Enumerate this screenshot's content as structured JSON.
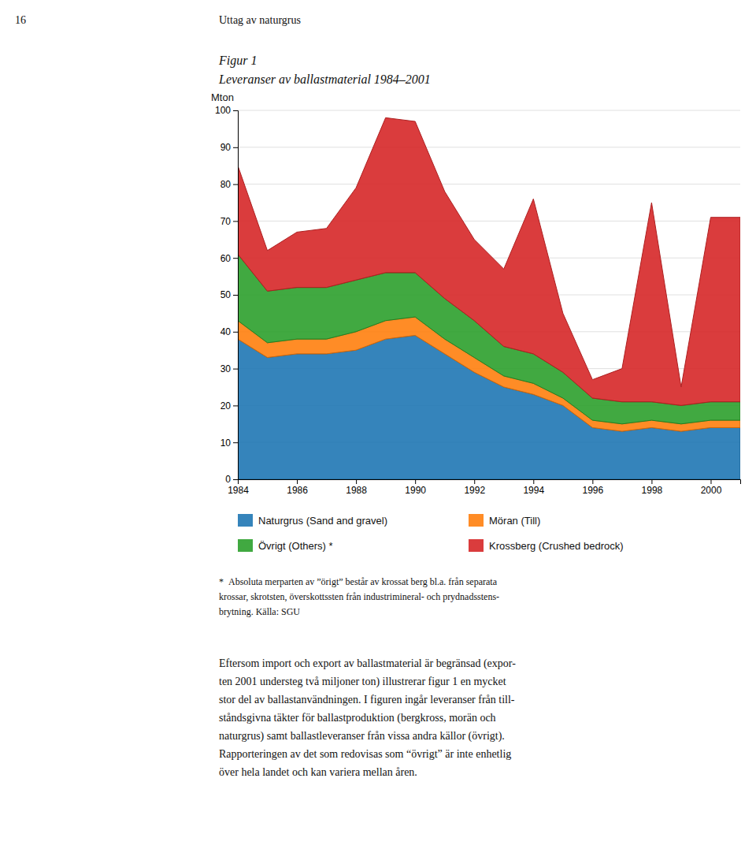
{
  "header": [
    "16",
    "Uttag av naturgrus"
  ],
  "chart_data": {
    "type": "area",
    "stacked": true,
    "title": "Figur 1",
    "subtitle": "Leveranser av ballastmaterial 1984–2001",
    "ylabel": "Mton",
    "x": [
      1984,
      1985,
      1986,
      1987,
      1988,
      1989,
      1990,
      1991,
      1992,
      1993,
      1994,
      1995,
      1996,
      1997,
      1998,
      1999,
      2000,
      2001
    ],
    "series": [
      {
        "name": "Naturgrus (Sand and gravel)",
        "values": [
          38,
          33,
          34,
          34,
          35,
          38,
          39,
          34,
          29,
          25,
          23,
          20,
          14,
          13,
          14,
          13,
          14,
          14
        ]
      },
      {
        "name": "Möran (Till)",
        "values": [
          5,
          4,
          4,
          4,
          5,
          5,
          5,
          4,
          4,
          3,
          3,
          2,
          2,
          2,
          2,
          2,
          2,
          2
        ]
      },
      {
        "name": "Övrigt (Others) *",
        "values": [
          18,
          14,
          14,
          14,
          14,
          13,
          12,
          11,
          10,
          8,
          8,
          7,
          6,
          6,
          5,
          5,
          5,
          5
        ]
      },
      {
        "name": "Krossberg (Crushed bedrock)",
        "values": [
          24,
          11,
          15,
          16,
          25,
          42,
          41,
          29,
          22,
          21,
          42,
          16,
          5,
          9,
          54,
          5,
          50,
          50
        ]
      }
    ],
    "xlim": [
      1984,
      2001
    ],
    "xticks": [
      1984,
      1986,
      1988,
      1990,
      1992,
      1994,
      1996,
      1998,
      2000
    ],
    "ylim": [
      0,
      100
    ],
    "yticks": [
      0,
      10,
      20,
      30,
      40,
      50,
      60,
      70,
      80,
      90,
      100
    ],
    "grid": true,
    "legend": "bottom",
    "annotations": [
      "* Absoluta merparten av ”örigt” består av krossat berg bl.a. från separata",
      "krossar, skrotsten, överskottssten från industrimineral- och prydnadsstens-",
      "brytning. Källa: SGU"
    ]
  },
  "body": [
    "Eftersom import och export av ballastmaterial är begränsad (expor-",
    "ten 2001 understeg två miljoner ton) illustrerar figur 1 en mycket",
    "stor del av ballastanvändningen. I figuren ingår leveranser från till-",
    "ståndsgivna täkter för ballastproduktion (bergkross, morän och",
    "naturgrus) samt ballastleveranser från vissa andra källor (övrigt).",
    "Rapporteringen av det som redovisas som “övrigt” är inte enhetlig",
    "över hela landet och kan variera mellan åren."
  ]
}
